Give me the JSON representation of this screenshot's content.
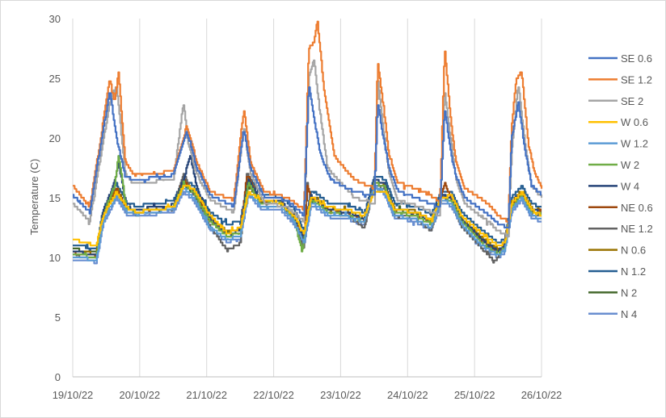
{
  "chart_data": {
    "type": "line",
    "title": "",
    "xlabel": "",
    "ylabel": "Temperature (C)",
    "ylim": [
      0,
      30
    ],
    "yticks": [
      0,
      5,
      10,
      15,
      20,
      25,
      30
    ],
    "xlim": [
      0,
      7
    ],
    "xticks": [
      {
        "x": 0,
        "label": "19/10/22"
      },
      {
        "x": 1,
        "label": "20/10/22"
      },
      {
        "x": 2,
        "label": "21/10/22"
      },
      {
        "x": 3,
        "label": "22/10/22"
      },
      {
        "x": 4,
        "label": "23/10/22"
      },
      {
        "x": 5,
        "label": "24/10/22"
      },
      {
        "x": 6,
        "label": "25/10/22"
      },
      {
        "x": 7,
        "label": "26/10/22"
      }
    ],
    "grid": "vertical",
    "legend_position": "right",
    "x_unit": "days since 19/10/22",
    "series": [
      {
        "name": "SE 0.6",
        "color": "#4472C4",
        "profile": "hi",
        "x": [
          0,
          0.25,
          0.4,
          0.55,
          0.65,
          0.78,
          0.9,
          1.1,
          1.5,
          1.7,
          1.85,
          2.05,
          2.4,
          2.55,
          2.65,
          2.85,
          3.2,
          3.45,
          3.52,
          3.62,
          3.7,
          3.85,
          4.2,
          4.5,
          4.55,
          4.65,
          4.72,
          4.85,
          5.2,
          5.48,
          5.55,
          5.65,
          5.72,
          5.85,
          6.2,
          6.35,
          6.5,
          6.55,
          6.65,
          6.75,
          6.85,
          7
        ],
        "y": [
          15.2,
          13.8,
          19,
          24,
          20,
          16.8,
          16.5,
          16.6,
          16.9,
          20.5,
          17.5,
          15.2,
          14.3,
          20.8,
          17.5,
          15.1,
          14.8,
          13.5,
          24.5,
          21,
          18.5,
          16.5,
          15.5,
          15.2,
          23,
          19.5,
          17.5,
          15.6,
          14.8,
          14.2,
          22.5,
          18.5,
          16.8,
          15,
          13.6,
          12.8,
          12.5,
          20,
          23,
          19,
          16,
          15.3
        ]
      },
      {
        "name": "SE 1.2",
        "color": "#ED7D31",
        "profile": "hi",
        "x": [
          0,
          0.25,
          0.4,
          0.55,
          0.62,
          0.68,
          0.78,
          0.9,
          1.1,
          1.5,
          1.7,
          1.85,
          2.05,
          2.4,
          2.55,
          2.65,
          2.85,
          3.2,
          3.45,
          3.52,
          3.6,
          3.65,
          3.75,
          3.9,
          4.2,
          4.5,
          4.55,
          4.65,
          4.72,
          4.85,
          5.2,
          5.48,
          5.55,
          5.65,
          5.72,
          5.85,
          6.2,
          6.35,
          6.5,
          6.55,
          6.62,
          6.7,
          6.8,
          6.9,
          7
        ],
        "y": [
          16,
          14.2,
          19.5,
          25,
          23,
          25.5,
          18,
          17,
          17,
          17.2,
          21,
          18,
          15.5,
          14.8,
          22.5,
          18,
          15.5,
          15,
          14,
          27.5,
          28,
          29.8,
          24,
          18.5,
          16.5,
          15.8,
          26.5,
          22,
          18.5,
          16.3,
          15.6,
          14.7,
          27.5,
          21,
          18,
          15.8,
          14.5,
          13.5,
          13,
          21,
          25,
          25.5,
          19.5,
          17,
          15.8
        ]
      },
      {
        "name": "SE 2",
        "color": "#A5A5A5",
        "profile": "hi",
        "x": [
          0,
          0.25,
          0.4,
          0.55,
          0.65,
          0.78,
          0.9,
          1.1,
          1.5,
          1.65,
          1.72,
          1.85,
          2.05,
          2.4,
          2.55,
          2.65,
          2.85,
          3.2,
          3.45,
          3.52,
          3.6,
          3.68,
          3.8,
          4.2,
          4.5,
          4.55,
          4.65,
          4.72,
          4.85,
          5.2,
          5.48,
          5.55,
          5.65,
          5.72,
          5.85,
          6.2,
          6.35,
          6.5,
          6.55,
          6.65,
          6.75,
          6.85,
          7
        ],
        "y": [
          14.5,
          13,
          18,
          23,
          24.5,
          17,
          16.2,
          16.3,
          16.5,
          23,
          19.5,
          17,
          14.8,
          13.8,
          21,
          17,
          14.6,
          14.2,
          13,
          25,
          26.5,
          22.5,
          17.5,
          15,
          14.5,
          25,
          20,
          17,
          14.8,
          14.2,
          13.5,
          24,
          19.5,
          16.5,
          14.5,
          13,
          12.2,
          11.8,
          19,
          24.5,
          19.5,
          16,
          15
        ]
      },
      {
        "name": "W 0.6",
        "color": "#FFC000",
        "profile": "lo",
        "x": [
          0,
          0.35,
          0.45,
          0.65,
          0.8,
          0.95,
          1.2,
          1.5,
          1.65,
          1.8,
          2.05,
          2.3,
          2.5,
          2.62,
          2.8,
          3.1,
          3.3,
          3.45,
          3.55,
          3.65,
          3.8,
          4.1,
          4.35,
          4.5,
          4.65,
          4.8,
          5.1,
          5.35,
          5.5,
          5.65,
          5.8,
          6.1,
          6.35,
          6.45,
          6.55,
          6.7,
          6.85,
          7
        ],
        "y": [
          11.5,
          11,
          13.5,
          15.5,
          14.2,
          13.8,
          14,
          14.2,
          16,
          15.8,
          13.5,
          12,
          12.5,
          15.5,
          14.8,
          14.5,
          13.5,
          12,
          15,
          14.8,
          14.2,
          14,
          13.5,
          15.5,
          15.6,
          14,
          13.8,
          13.2,
          15,
          15.2,
          13.5,
          12,
          11,
          11.2,
          14.5,
          15.5,
          14,
          13.5
        ]
      },
      {
        "name": "W 1.2",
        "color": "#5B9BD5",
        "profile": "lo",
        "x": [
          0,
          0.35,
          0.45,
          0.65,
          0.8,
          0.95,
          1.2,
          1.5,
          1.65,
          1.8,
          2.05,
          2.3,
          2.5,
          2.62,
          2.8,
          3.1,
          3.3,
          3.45,
          3.55,
          3.65,
          3.8,
          4.1,
          4.35,
          4.5,
          4.65,
          4.8,
          5.1,
          5.35,
          5.5,
          5.65,
          5.8,
          6.1,
          6.35,
          6.45,
          6.55,
          6.7,
          6.85,
          7
        ],
        "y": [
          10,
          9.8,
          13,
          15.2,
          13.8,
          13.6,
          13.8,
          14,
          15.8,
          15,
          12.5,
          11.5,
          11.8,
          15.5,
          14.3,
          14.2,
          13,
          11.2,
          14.5,
          14.3,
          13.6,
          13.4,
          13,
          16,
          15.5,
          13.5,
          13.2,
          12.5,
          14.8,
          14.5,
          12.8,
          11,
          10.2,
          10.6,
          14,
          15,
          13.5,
          13.2
        ]
      },
      {
        "name": "W 2",
        "color": "#70AD47",
        "profile": "lo",
        "x": [
          0,
          0.35,
          0.45,
          0.62,
          0.68,
          0.8,
          0.95,
          1.2,
          1.5,
          1.65,
          1.8,
          2.05,
          2.3,
          2.5,
          2.62,
          2.8,
          3.1,
          3.3,
          3.42,
          3.55,
          3.65,
          3.8,
          4.1,
          4.35,
          4.5,
          4.65,
          4.8,
          5.1,
          5.35,
          5.5,
          5.65,
          5.8,
          6.1,
          6.35,
          6.45,
          6.55,
          6.7,
          6.85,
          7
        ],
        "y": [
          10.3,
          10,
          13.5,
          16,
          18.5,
          14,
          13.8,
          14,
          14.2,
          16.2,
          15.5,
          13,
          11.8,
          12,
          16.2,
          14.5,
          14.5,
          13.2,
          10.5,
          14.8,
          14.5,
          13.8,
          13.5,
          13,
          16.2,
          16,
          13.8,
          13.5,
          12.8,
          15,
          14.8,
          13,
          11.2,
          10.3,
          10.8,
          14.2,
          15.2,
          13.8,
          13.6
        ]
      },
      {
        "name": "W 4",
        "color": "#264478",
        "profile": "lo",
        "x": [
          0,
          0.35,
          0.45,
          0.62,
          0.68,
          0.8,
          0.95,
          1.2,
          1.5,
          1.65,
          1.75,
          1.85,
          2.05,
          2.3,
          2.5,
          2.62,
          2.8,
          3.1,
          3.3,
          3.45,
          3.55,
          3.65,
          3.8,
          4.1,
          4.35,
          4.5,
          4.65,
          4.8,
          5.1,
          5.35,
          5.5,
          5.65,
          5.8,
          6.1,
          6.35,
          6.45,
          6.55,
          6.7,
          6.85,
          7
        ],
        "y": [
          10.5,
          10.2,
          13.8,
          16.3,
          18,
          14.2,
          14,
          14.2,
          14.4,
          16.5,
          18.5,
          15.8,
          13.2,
          12,
          12.2,
          16.5,
          14.8,
          14.8,
          13.5,
          11.5,
          15.2,
          14.8,
          14,
          13.8,
          13.2,
          16.5,
          16.2,
          14,
          13.8,
          13,
          15.2,
          15,
          13.2,
          11.5,
          10.5,
          11,
          14.5,
          15.5,
          14,
          13.8
        ]
      },
      {
        "name": "NE 0.6",
        "color": "#9E480E",
        "profile": "lo",
        "x": [
          0,
          0.35,
          0.45,
          0.65,
          0.8,
          0.95,
          1.2,
          1.5,
          1.65,
          1.8,
          2.05,
          2.3,
          2.5,
          2.6,
          2.8,
          3.1,
          3.3,
          3.45,
          3.5,
          3.55,
          3.65,
          3.8,
          4.1,
          4.35,
          4.5,
          4.65,
          4.8,
          5.1,
          5.35,
          5.5,
          5.55,
          5.65,
          5.8,
          6.1,
          6.35,
          6.45,
          6.55,
          6.7,
          6.85,
          7
        ],
        "y": [
          10.4,
          10.1,
          13.6,
          15.8,
          14,
          13.8,
          14,
          14.2,
          16.5,
          15.5,
          13.1,
          11.8,
          12,
          17,
          14.6,
          14.7,
          13.4,
          11.4,
          16,
          15,
          14.7,
          14,
          13.7,
          13.1,
          16.2,
          16,
          13.9,
          13.6,
          12.9,
          15.1,
          16.2,
          14.9,
          13.1,
          11.4,
          10.4,
          10.9,
          14.4,
          15.4,
          13.9,
          13.7
        ]
      },
      {
        "name": "NE 1.2",
        "color": "#636363",
        "profile": "lo",
        "x": [
          0,
          0.35,
          0.45,
          0.65,
          0.8,
          0.95,
          1.2,
          1.5,
          1.65,
          1.8,
          2.05,
          2.3,
          2.5,
          2.6,
          2.8,
          3.1,
          3.3,
          3.45,
          3.5,
          3.55,
          3.65,
          3.8,
          4.1,
          4.35,
          4.5,
          4.65,
          4.8,
          5.1,
          5.35,
          5.5,
          5.65,
          5.8,
          6.1,
          6.3,
          6.4,
          6.55,
          6.7,
          6.85,
          7
        ],
        "y": [
          10.2,
          9.9,
          13.4,
          15.6,
          13.8,
          13.6,
          13.8,
          14,
          17,
          15.2,
          12.6,
          10.6,
          11.2,
          17.2,
          14.4,
          14.5,
          13.2,
          10.8,
          16.2,
          14.8,
          14.5,
          13.8,
          13.5,
          12.5,
          16,
          15.8,
          13.6,
          13.3,
          12.2,
          15,
          14.7,
          12.6,
          10.8,
          9.6,
          10.5,
          14.2,
          15.2,
          13.6,
          13.4
        ]
      },
      {
        "name": "N 0.6",
        "color": "#997300",
        "profile": "lo",
        "x": [
          0,
          0.35,
          0.45,
          0.65,
          0.8,
          0.95,
          1.2,
          1.5,
          1.65,
          1.8,
          2.05,
          2.3,
          2.5,
          2.62,
          2.8,
          3.1,
          3.3,
          3.45,
          3.55,
          3.65,
          3.8,
          4.1,
          4.35,
          4.5,
          4.65,
          4.8,
          5.1,
          5.35,
          5.5,
          5.65,
          5.8,
          6.1,
          6.35,
          6.45,
          6.55,
          6.7,
          6.85,
          7
        ],
        "y": [
          10.6,
          10.3,
          13.7,
          15.9,
          14.1,
          13.9,
          14.1,
          14.3,
          16.3,
          15.6,
          13.3,
          12.2,
          12.4,
          16.3,
          14.7,
          14.6,
          13.6,
          11.7,
          15.1,
          14.9,
          14.1,
          13.9,
          13.3,
          16.3,
          16.1,
          14.1,
          13.9,
          13.1,
          15.1,
          15.1,
          13.3,
          11.7,
          10.6,
          11.1,
          14.6,
          15.6,
          14.1,
          13.9
        ]
      },
      {
        "name": "N 1.2",
        "color": "#255E91",
        "profile": "lo",
        "x": [
          0,
          0.35,
          0.45,
          0.65,
          0.8,
          0.95,
          1.2,
          1.5,
          1.65,
          1.8,
          2.05,
          2.3,
          2.5,
          2.62,
          2.8,
          3.1,
          3.3,
          3.45,
          3.55,
          3.65,
          3.8,
          4.1,
          4.35,
          4.5,
          4.65,
          4.8,
          5.1,
          5.35,
          5.5,
          5.65,
          5.8,
          6.1,
          6.35,
          6.45,
          6.55,
          6.7,
          6.85,
          7
        ],
        "y": [
          11,
          10.8,
          14,
          16.2,
          14.6,
          14.3,
          14.5,
          14.7,
          16.6,
          16,
          13.8,
          12.8,
          13,
          16.8,
          15.2,
          15.1,
          14.1,
          12.2,
          15.6,
          15.3,
          14.6,
          14.4,
          13.8,
          16.7,
          16.6,
          14.6,
          14.3,
          13.6,
          15.6,
          15.5,
          13.8,
          12.3,
          11.2,
          11.6,
          15,
          16,
          14.5,
          14.2
        ]
      },
      {
        "name": "N 2",
        "color": "#43682B",
        "profile": "lo",
        "x": [
          0,
          0.35,
          0.45,
          0.65,
          0.8,
          0.95,
          1.2,
          1.5,
          1.65,
          1.8,
          2.05,
          2.3,
          2.5,
          2.62,
          2.8,
          3.1,
          3.3,
          3.45,
          3.55,
          3.65,
          3.8,
          4.1,
          4.35,
          4.5,
          4.65,
          4.8,
          5.1,
          5.35,
          5.5,
          5.65,
          5.8,
          6.1,
          6.35,
          6.45,
          6.55,
          6.7,
          6.85,
          7
        ],
        "y": [
          10.7,
          10.4,
          13.5,
          15.7,
          14,
          13.8,
          14,
          14.1,
          16,
          15.4,
          13.2,
          12.1,
          12.3,
          16,
          14.6,
          14.4,
          13.5,
          11.6,
          14.9,
          14.7,
          14,
          13.8,
          13.2,
          16,
          15.9,
          14,
          13.7,
          13,
          14.9,
          14.9,
          13.2,
          11.6,
          10.5,
          11,
          14.5,
          15.4,
          14,
          13.8
        ]
      },
      {
        "name": "N 4",
        "color": "#698ED0",
        "profile": "lo",
        "x": [
          0,
          0.35,
          0.45,
          0.65,
          0.8,
          0.95,
          1.2,
          1.5,
          1.65,
          1.8,
          2.05,
          2.3,
          2.5,
          2.62,
          2.8,
          3.1,
          3.3,
          3.45,
          3.55,
          3.65,
          3.8,
          4.1,
          4.35,
          4.5,
          4.65,
          4.8,
          5.1,
          5.35,
          5.5,
          5.65,
          5.8,
          6.1,
          6.35,
          6.45,
          6.55,
          6.7,
          6.85,
          7
        ],
        "y": [
          9.8,
          9.6,
          12.8,
          15,
          13.6,
          13.4,
          13.6,
          13.8,
          15.5,
          14.8,
          12.3,
          11.3,
          11.6,
          15.3,
          14.1,
          14,
          12.8,
          11,
          14.3,
          14.1,
          13.4,
          13.2,
          12.8,
          15.8,
          15.3,
          13.3,
          13,
          12.3,
          14.6,
          14.3,
          12.6,
          10.8,
          10,
          10.4,
          13.8,
          14.8,
          13.3,
          13
        ]
      }
    ]
  }
}
